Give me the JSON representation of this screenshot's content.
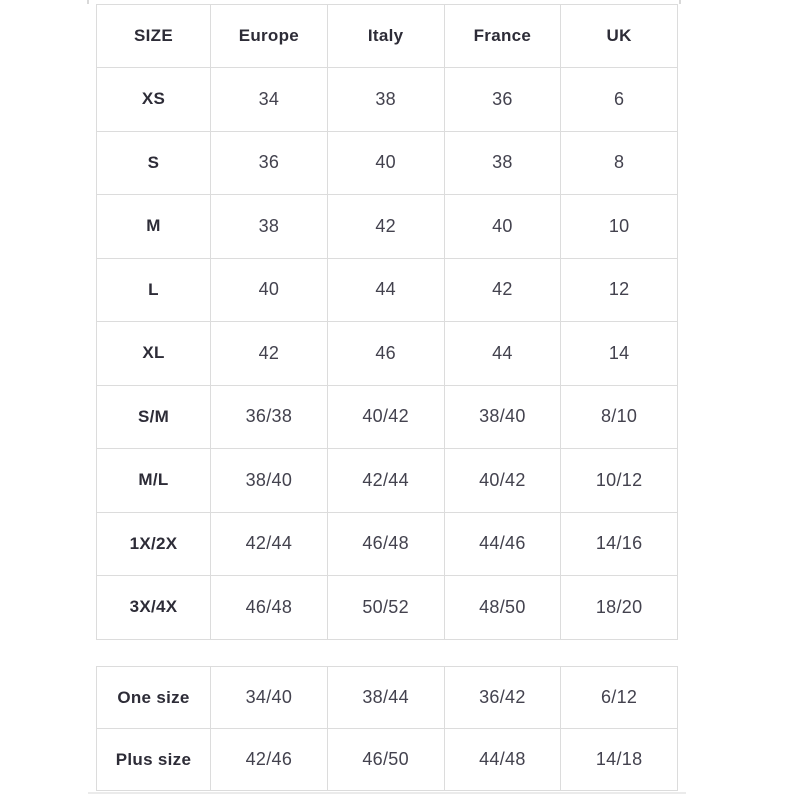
{
  "colors": {
    "background": "#ffffff",
    "border": "#dcdcdc",
    "header-text": "#2d2c37",
    "value-text": "#43424e"
  },
  "main_table": {
    "columns": [
      "SIZE",
      "Europe",
      "Italy",
      "France",
      "UK"
    ],
    "rows": [
      {
        "label": "XS",
        "values": [
          "34",
          "38",
          "36",
          "6"
        ]
      },
      {
        "label": "S",
        "values": [
          "36",
          "40",
          "38",
          "8"
        ]
      },
      {
        "label": "M",
        "values": [
          "38",
          "42",
          "40",
          "10"
        ]
      },
      {
        "label": "L",
        "values": [
          "40",
          "44",
          "42",
          "12"
        ]
      },
      {
        "label": "XL",
        "values": [
          "42",
          "46",
          "44",
          "14"
        ]
      },
      {
        "label": "S/M",
        "values": [
          "36/38",
          "40/42",
          "38/40",
          "8/10"
        ]
      },
      {
        "label": "M/L",
        "values": [
          "38/40",
          "42/44",
          "40/42",
          "10/12"
        ]
      },
      {
        "label": "1X/2X",
        "values": [
          "42/44",
          "46/48",
          "44/46",
          "14/16"
        ]
      },
      {
        "label": "3X/4X",
        "values": [
          "46/48",
          "50/52",
          "48/50",
          "18/20"
        ]
      }
    ]
  },
  "secondary_table": {
    "rows": [
      {
        "label": "One size",
        "values": [
          "34/40",
          "38/44",
          "36/42",
          "6/12"
        ]
      },
      {
        "label": "Plus size",
        "values": [
          "42/46",
          "46/50",
          "44/48",
          "14/18"
        ]
      }
    ]
  }
}
